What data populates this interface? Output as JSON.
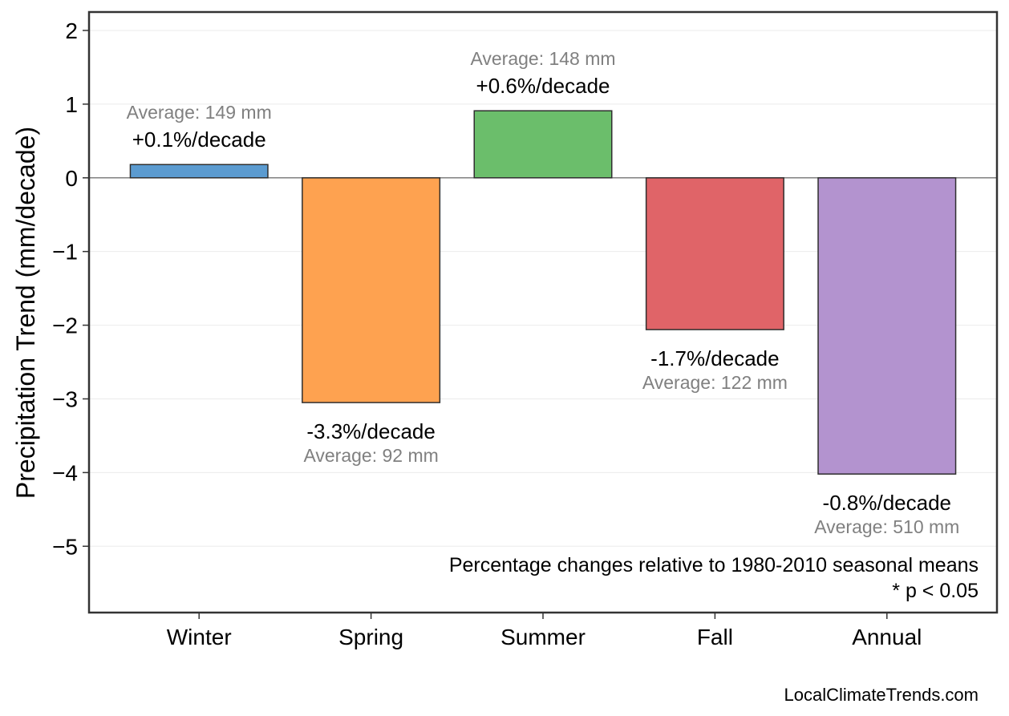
{
  "chart_data": {
    "type": "bar",
    "title": "",
    "xlabel": "",
    "ylabel": "Precipitation Trend (mm/decade)",
    "ylim": [
      -5.9,
      2.25
    ],
    "yticks": [
      2,
      1,
      0,
      -1,
      -2,
      -3,
      -4,
      -5
    ],
    "ytick_labels": [
      "2",
      "1",
      "0",
      "−1",
      "−2",
      "−3",
      "−4",
      "−5"
    ],
    "grid": true,
    "categories": [
      "Winter",
      "Spring",
      "Summer",
      "Fall",
      "Annual"
    ],
    "values": [
      0.18,
      -3.05,
      0.91,
      -2.06,
      -4.02
    ],
    "colors": [
      "#5b9bd0",
      "#fea250",
      "#6bbe6b",
      "#e06468",
      "#b393cf"
    ],
    "trend_labels": [
      "+0.1%/decade",
      "-3.3%/decade",
      "+0.6%/decade",
      "-1.7%/decade",
      "-0.8%/decade"
    ],
    "average_labels": [
      "Average: 149 mm",
      "Average: 92 mm",
      "Average: 148 mm",
      "Average: 122 mm",
      "Average: 510 mm"
    ],
    "annotations": [
      "Percentage changes relative to 1980-2010 seasonal means",
      "* p < 0.05"
    ]
  },
  "source": "LocalClimateTrends.com"
}
